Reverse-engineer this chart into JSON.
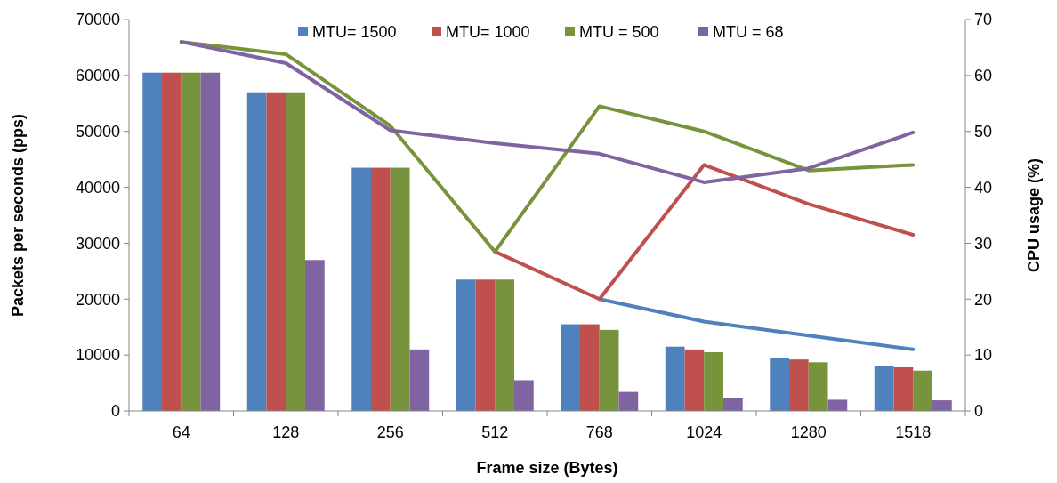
{
  "chart_data": {
    "type": "bar",
    "xlabel": "Frame size (Bytes)",
    "ylabel": "Packets per seconds (pps)",
    "y2label": "CPU usage (%)",
    "categories": [
      "64",
      "128",
      "256",
      "512",
      "768",
      "1024",
      "1280",
      "1518"
    ],
    "series": [
      {
        "name": "MTU= 1500",
        "color": "#4f81bd",
        "values": [
          60500,
          57000,
          43500,
          23500,
          15500,
          11500,
          9400,
          8000
        ]
      },
      {
        "name": "MTU= 1000",
        "color": "#c0504d",
        "values": [
          60500,
          57000,
          43500,
          23500,
          15500,
          11000,
          9200,
          7800
        ]
      },
      {
        "name": "MTU = 500",
        "color": "#77933c",
        "values": [
          60500,
          57000,
          43500,
          23500,
          14500,
          10500,
          8700,
          7200
        ]
      },
      {
        "name": "MTU = 68",
        "color": "#8064a2",
        "values": [
          60500,
          27000,
          11000,
          5500,
          3400,
          2300,
          2000,
          1900
        ]
      },
      {
        "type": "line",
        "axis": "y2",
        "color": "#4f81bd",
        "values": [
          null,
          null,
          null,
          null,
          20,
          16,
          13.5,
          11
        ]
      },
      {
        "type": "line",
        "axis": "y2",
        "color": "#c0504d",
        "values": [
          null,
          null,
          null,
          28.5,
          20,
          44,
          37,
          31.5
        ]
      },
      {
        "type": "line",
        "axis": "y2",
        "color": "#77933c",
        "values": [
          66,
          63.8,
          51,
          28.5,
          54.5,
          50,
          43,
          44
        ]
      },
      {
        "type": "line",
        "axis": "y2",
        "color": "#8064a2",
        "values": [
          66,
          62.2,
          50.2,
          47.9,
          46,
          40.9,
          43.4,
          49.8
        ]
      }
    ],
    "ylim": [
      0,
      70000
    ],
    "yticks": [
      0,
      10000,
      20000,
      30000,
      40000,
      50000,
      60000,
      70000
    ],
    "y2lim": [
      0,
      70
    ],
    "y2ticks": [
      0,
      10,
      20,
      30,
      40,
      50,
      60,
      70
    ],
    "legend": "top",
    "grid": false,
    "marker": "none",
    "line_style": "solid"
  }
}
